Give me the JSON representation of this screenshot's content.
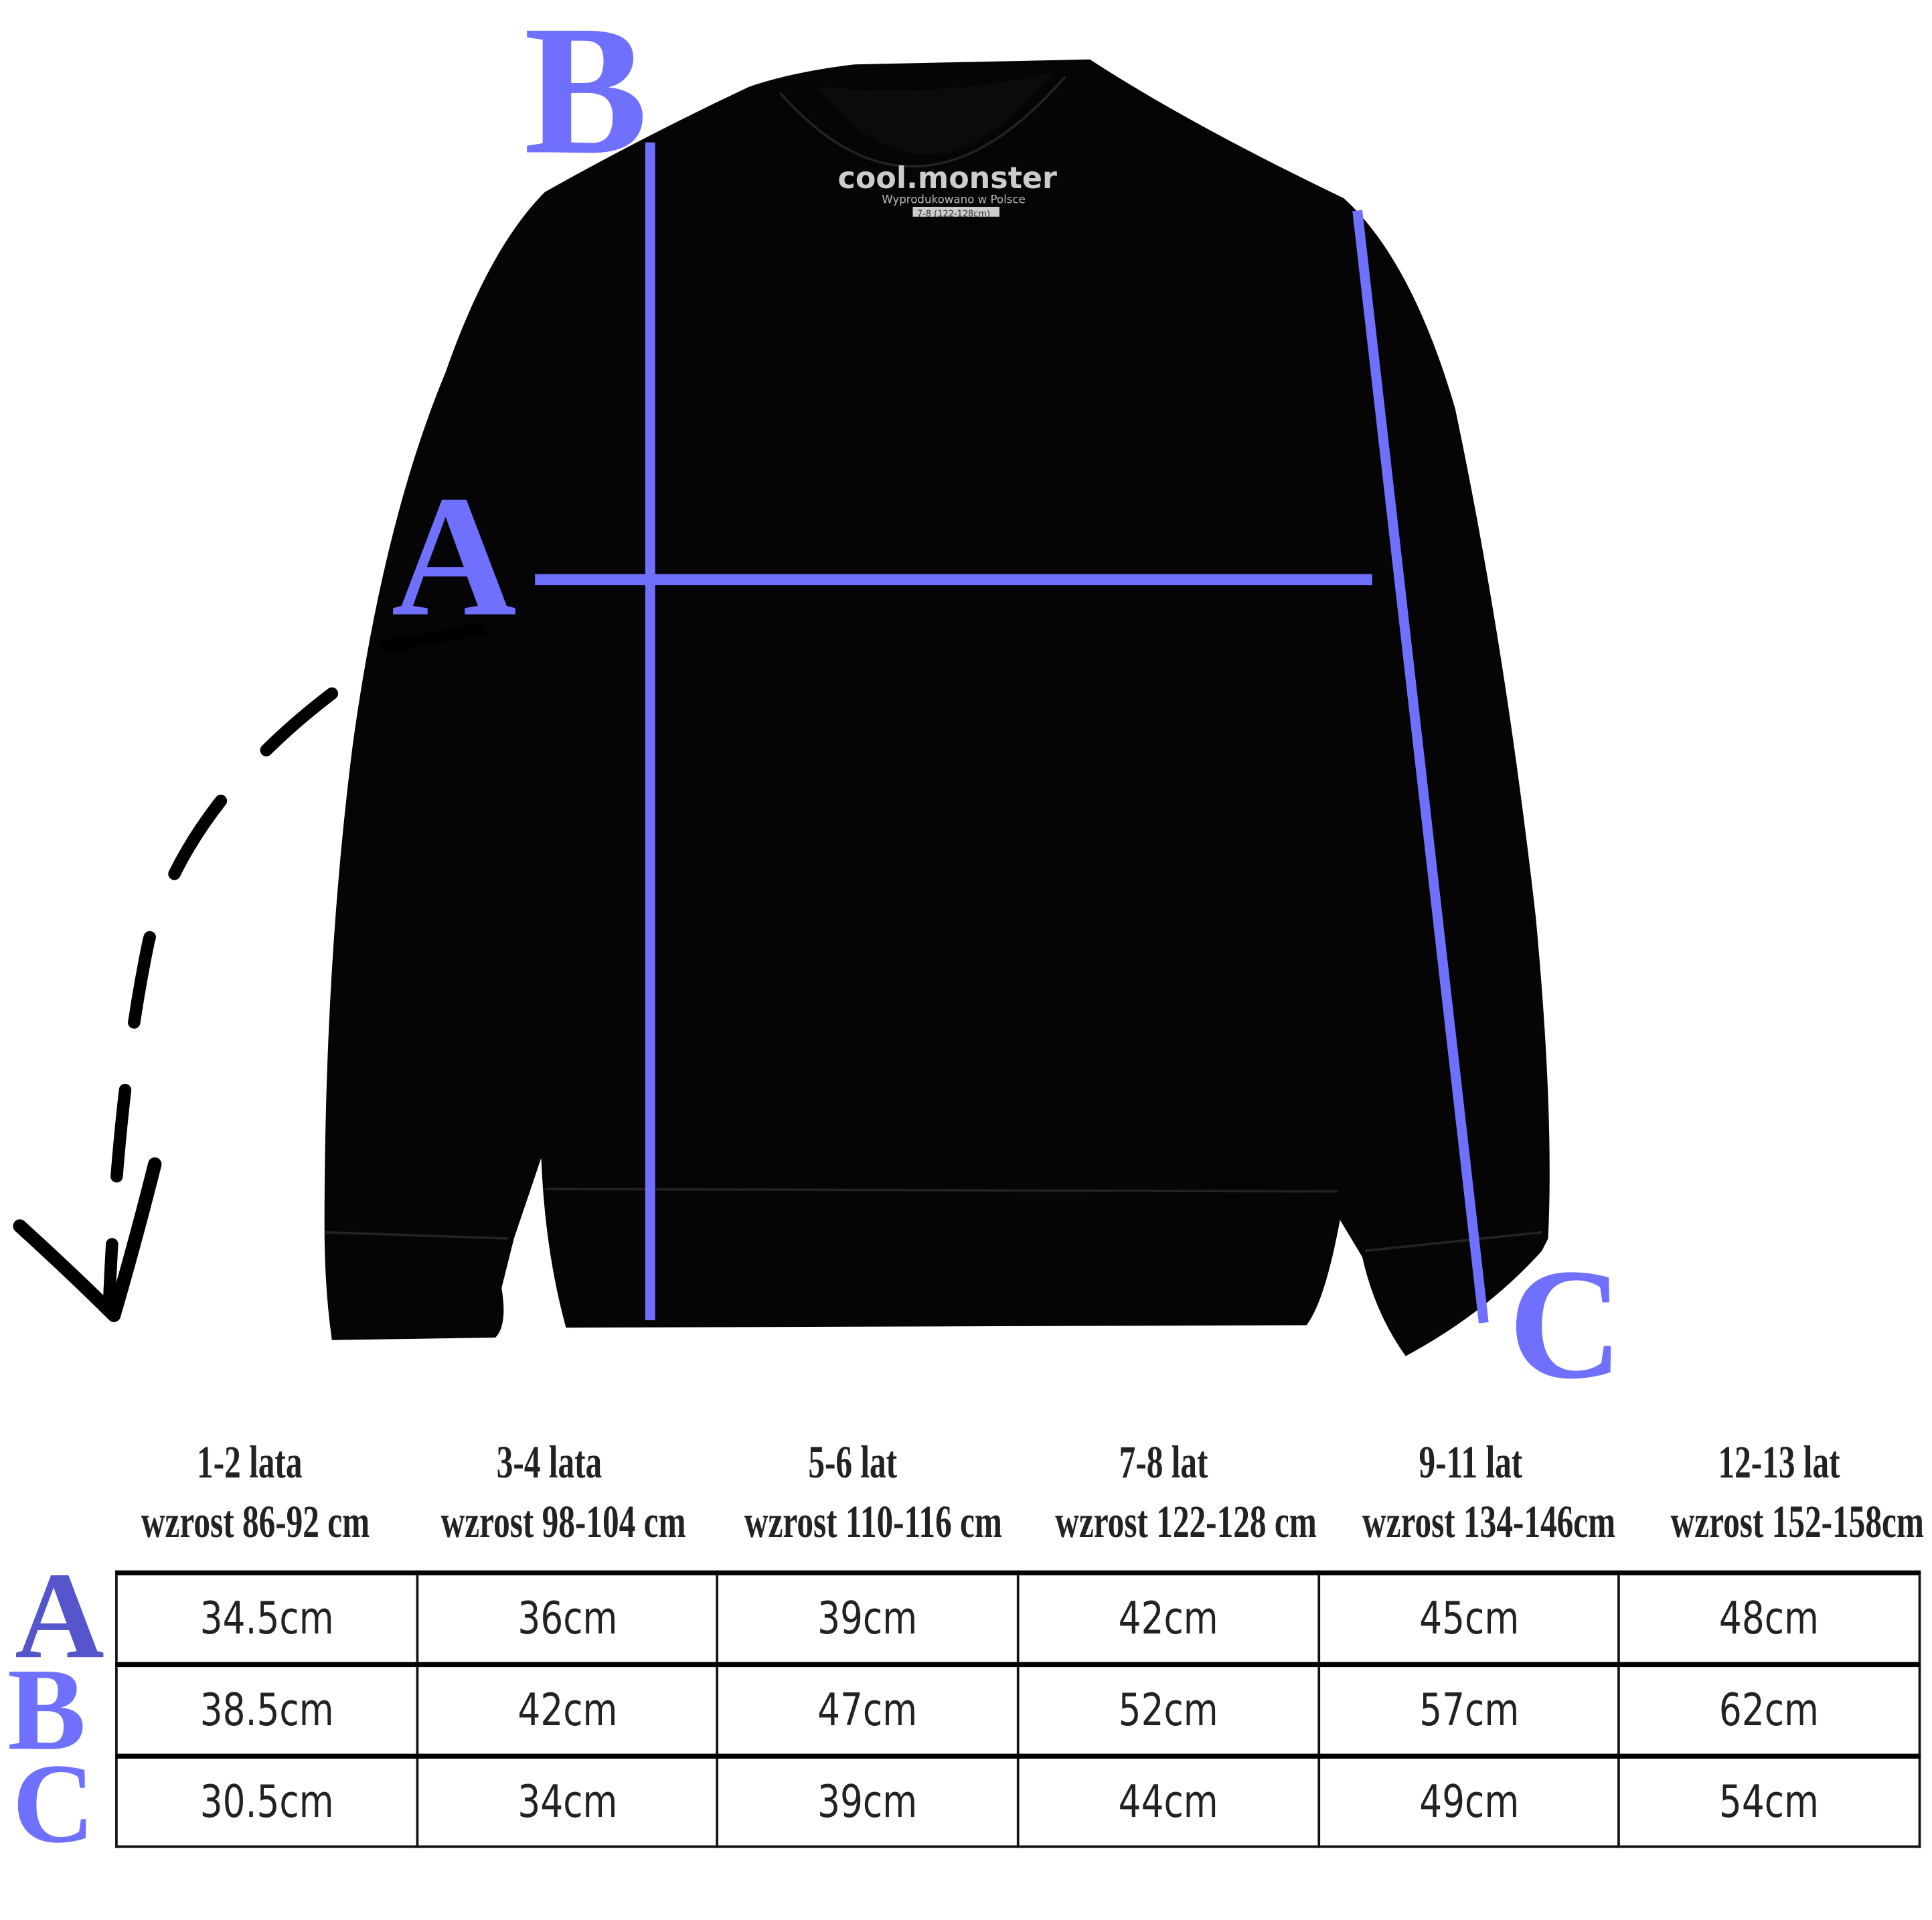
{
  "labels": {
    "a": "A",
    "b": "B",
    "c": "C"
  },
  "tag": {
    "brand": "cool.monster",
    "made_in": "Wyprodukowano w Polsce",
    "size": "7-8 (122-128cm)"
  },
  "colors": {
    "accent": "#7070ff",
    "garment": "#050505"
  },
  "table": {
    "columns": [
      {
        "age": "1-2 lata",
        "height": "wzrost 86-92 cm"
      },
      {
        "age": "3-4 lata",
        "height": "wzrost 98-104 cm"
      },
      {
        "age": "5-6 lat",
        "height": "wzrost 110-116 cm"
      },
      {
        "age": "7-8 lat",
        "height": "wzrost 122-128 cm"
      },
      {
        "age": "9-11 lat",
        "height": "wzrost 134-146cm"
      },
      {
        "age": "12-13 lat",
        "height": "wzrost 152-158cm"
      }
    ],
    "rows": [
      {
        "label": "A",
        "values": [
          "34.5cm",
          "36cm",
          "39cm",
          "42cm",
          "45cm",
          "48cm"
        ]
      },
      {
        "label": "B",
        "values": [
          "38.5cm",
          "42cm",
          "47cm",
          "52cm",
          "57cm",
          "62cm"
        ]
      },
      {
        "label": "C",
        "values": [
          "30.5cm",
          "34cm",
          "39cm",
          "44cm",
          "49cm",
          "54cm"
        ]
      }
    ]
  }
}
